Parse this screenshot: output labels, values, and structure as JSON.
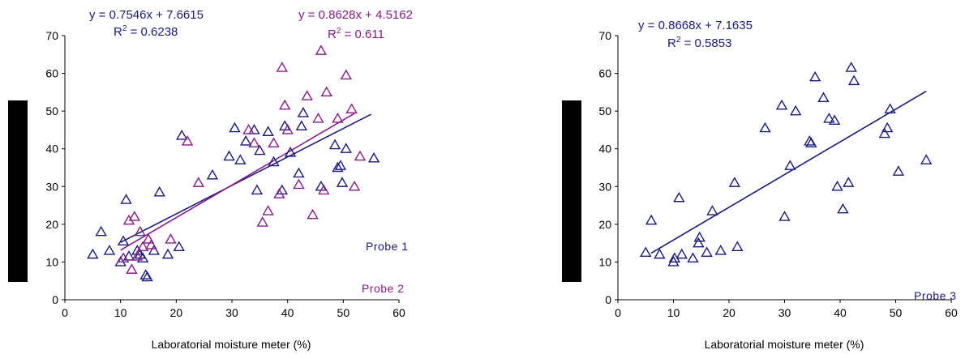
{
  "colors": {
    "navy": "#1a1a80",
    "purple": "#8a1a8a",
    "axis": "#000000",
    "bar": "#000000"
  },
  "chart_data": [
    {
      "type": "scatter",
      "xlabel": "Laboratorial moisture meter (%)",
      "xlim": [
        0,
        60
      ],
      "ylim": [
        0,
        70
      ],
      "xticks": [
        "0",
        "10",
        "20",
        "30",
        "40",
        "50",
        "60"
      ],
      "yticks": [
        "0",
        "10",
        "20",
        "30",
        "40",
        "50",
        "60",
        "70"
      ],
      "annotations": {
        "eq1": "y = 0.7546x + 7.6615",
        "r1": "R",
        "r1sup": "2",
        "r1val": " = 0.6238",
        "eq2": "y = 0.8628x + 4.5162",
        "r2": "R",
        "r2sup": "2",
        "r2val": " = 0.611",
        "probe1": "Probe 1",
        "probe2": "Probe 2"
      },
      "series": [
        {
          "name": "Probe 1",
          "color": "#1a1a80",
          "trend": {
            "slope": 0.7546,
            "intercept": 7.6615,
            "x": [
              10,
              55
            ]
          },
          "points": [
            [
              5,
              12
            ],
            [
              6.5,
              18
            ],
            [
              8,
              13
            ],
            [
              10,
              10
            ],
            [
              10.5,
              15.5
            ],
            [
              11,
              26.5
            ],
            [
              11.5,
              11.5
            ],
            [
              13,
              13
            ],
            [
              13.5,
              12
            ],
            [
              14,
              11
            ],
            [
              14.5,
              6.5
            ],
            [
              14.8,
              6
            ],
            [
              16,
              13
            ],
            [
              17,
              28.5
            ],
            [
              18.5,
              12
            ],
            [
              20.5,
              14
            ],
            [
              21,
              43.5
            ],
            [
              26.5,
              33
            ],
            [
              29.5,
              38
            ],
            [
              30.5,
              45.5
            ],
            [
              31.5,
              37
            ],
            [
              32.5,
              42
            ],
            [
              34,
              45
            ],
            [
              34.5,
              29
            ],
            [
              35,
              39.5
            ],
            [
              36.5,
              44.5
            ],
            [
              37.5,
              36.5
            ],
            [
              39,
              29
            ],
            [
              39.5,
              46
            ],
            [
              40.5,
              39
            ],
            [
              42,
              33.5
            ],
            [
              42.5,
              46
            ],
            [
              42.8,
              49.5
            ],
            [
              46,
              30
            ],
            [
              48.5,
              41
            ],
            [
              49,
              35
            ],
            [
              49.5,
              35.5
            ],
            [
              49.8,
              31
            ],
            [
              50.5,
              40
            ],
            [
              55.5,
              37.5
            ]
          ]
        },
        {
          "name": "Probe 2",
          "color": "#8a1a8a",
          "trend": {
            "slope": 0.8628,
            "intercept": 4.5162,
            "x": [
              10,
              52
            ]
          },
          "points": [
            [
              10.5,
              11
            ],
            [
              11.5,
              21
            ],
            [
              12,
              8
            ],
            [
              12.5,
              22
            ],
            [
              13,
              11.5
            ],
            [
              13.5,
              18
            ],
            [
              14,
              14
            ],
            [
              15,
              16
            ],
            [
              15.5,
              14.5
            ],
            [
              19,
              16
            ],
            [
              22,
              42
            ],
            [
              24,
              31
            ],
            [
              33,
              45
            ],
            [
              34,
              41.5
            ],
            [
              35.5,
              20.5
            ],
            [
              36.5,
              23.5
            ],
            [
              37.5,
              41.5
            ],
            [
              38.5,
              28
            ],
            [
              39,
              61.5
            ],
            [
              39.5,
              51.5
            ],
            [
              40,
              45
            ],
            [
              42,
              30.5
            ],
            [
              43.5,
              54
            ],
            [
              44.5,
              22.5
            ],
            [
              45.5,
              48
            ],
            [
              46,
              66
            ],
            [
              46.5,
              29
            ],
            [
              47,
              55
            ],
            [
              49,
              48
            ],
            [
              50.5,
              59.5
            ],
            [
              51.5,
              50.5
            ],
            [
              52,
              30
            ],
            [
              53,
              38
            ]
          ]
        }
      ]
    },
    {
      "type": "scatter",
      "xlabel": "Laboratorial moisture meter (%)",
      "xlim": [
        0,
        60
      ],
      "ylim": [
        0,
        70
      ],
      "xticks": [
        "0",
        "10",
        "20",
        "30",
        "40",
        "50",
        "60"
      ],
      "yticks": [
        "0",
        "10",
        "20",
        "30",
        "40",
        "50",
        "60",
        "70"
      ],
      "annotations": {
        "eq1": "y = 0.8668x + 7.1635",
        "r1": "R",
        "r1sup": "2",
        "r1val": " = 0.5853",
        "probe1": "Probe 3"
      },
      "series": [
        {
          "name": "Probe 3",
          "color": "#1a1a80",
          "trend": {
            "slope": 0.8668,
            "intercept": 7.1635,
            "x": [
              6,
              55.5
            ]
          },
          "points": [
            [
              5,
              12.5
            ],
            [
              6,
              21
            ],
            [
              7.5,
              12
            ],
            [
              10,
              10
            ],
            [
              10.2,
              11
            ],
            [
              11,
              27
            ],
            [
              11.5,
              12
            ],
            [
              13.5,
              11
            ],
            [
              14.5,
              15
            ],
            [
              14.7,
              16.5
            ],
            [
              16,
              12.5
            ],
            [
              17,
              23.5
            ],
            [
              18.5,
              13
            ],
            [
              21,
              31
            ],
            [
              21.5,
              14
            ],
            [
              26.5,
              45.5
            ],
            [
              29.5,
              51.5
            ],
            [
              30,
              22
            ],
            [
              31,
              35.5
            ],
            [
              32,
              50
            ],
            [
              34.5,
              42
            ],
            [
              34.8,
              41.5
            ],
            [
              35.5,
              59
            ],
            [
              37,
              53.5
            ],
            [
              38,
              48
            ],
            [
              39,
              47.5
            ],
            [
              39.5,
              30
            ],
            [
              40.5,
              24
            ],
            [
              41.5,
              31
            ],
            [
              42,
              61.5
            ],
            [
              42.5,
              58
            ],
            [
              48,
              44
            ],
            [
              48.5,
              45.5
            ],
            [
              49,
              50.5
            ],
            [
              50.5,
              34
            ],
            [
              55.5,
              37
            ]
          ]
        }
      ]
    }
  ]
}
